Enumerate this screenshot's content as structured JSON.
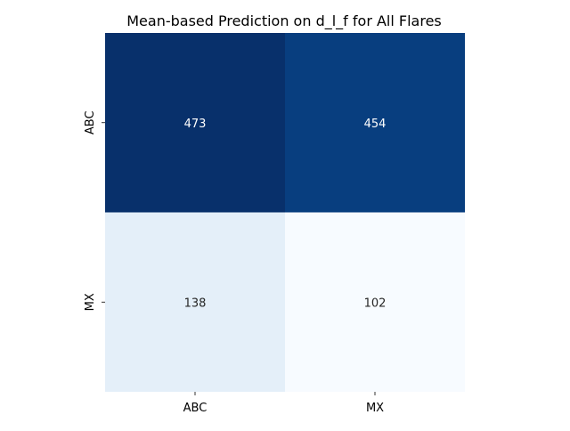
{
  "chart_data": {
    "type": "heatmap",
    "title": "Mean-based Prediction on d_l_f for All Flares",
    "xlabel": "",
    "ylabel": "",
    "x_categories": [
      "ABC",
      "MX"
    ],
    "y_categories": [
      "ABC",
      "MX"
    ],
    "values": [
      [
        473,
        454
      ],
      [
        138,
        102
      ]
    ],
    "colormap": "Blues",
    "color_range": [
      102,
      473
    ],
    "colorbar": false,
    "grid": false,
    "colors": {
      "high": "#08306b",
      "low": "#f7fbff",
      "text_on_dark": "#ffffff",
      "text_on_light": "#262626"
    }
  }
}
